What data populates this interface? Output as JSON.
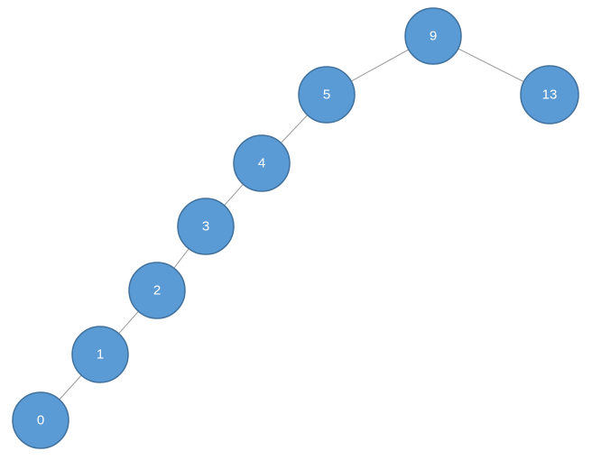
{
  "tree": {
    "nodes": [
      {
        "id": "n9",
        "label": "9"
      },
      {
        "id": "n5",
        "label": "5"
      },
      {
        "id": "n13",
        "label": "13"
      },
      {
        "id": "n4",
        "label": "4"
      },
      {
        "id": "n3",
        "label": "3"
      },
      {
        "id": "n2",
        "label": "2"
      },
      {
        "id": "n1",
        "label": "1"
      },
      {
        "id": "n0",
        "label": "0"
      }
    ],
    "edges": [
      [
        "n9",
        "n5"
      ],
      [
        "n9",
        "n13"
      ],
      [
        "n5",
        "n4"
      ],
      [
        "n4",
        "n3"
      ],
      [
        "n3",
        "n2"
      ],
      [
        "n2",
        "n1"
      ],
      [
        "n1",
        "n0"
      ]
    ],
    "colors": {
      "node_fill": "#5b9bd5",
      "node_stroke": "#41719c",
      "edge": "#9a9a9a",
      "label": "#ffffff"
    }
  }
}
